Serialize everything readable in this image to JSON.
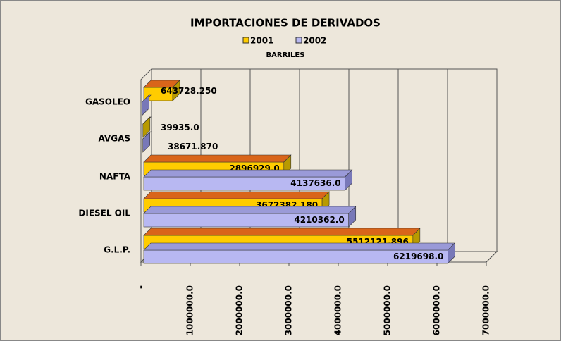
{
  "chart_data": {
    "type": "bar3d-horizontal",
    "title": "IMPORTACIONES DE DERIVADOS",
    "subtitle": "BARRILES",
    "categories": [
      "GASOLEO",
      "AVGAS",
      "NAFTA",
      "DIESEL OIL",
      "G.L.P."
    ],
    "series": [
      {
        "name": "2001",
        "color": "#ffcc00",
        "top_color": "#d9651a",
        "side_color": "#b89a00",
        "values": [
          643728.25,
          39935,
          2896929,
          3672382.18,
          5512121.896
        ],
        "value_labels": [
          "643728.250",
          "39935.0",
          "2896929.0",
          "3672382.180",
          "5512121.896"
        ]
      },
      {
        "name": "2002",
        "color": "#b8b8f2",
        "top_color": "#9a9ad8",
        "side_color": "#7878b8",
        "values": [
          20000,
          38671.87,
          4137636,
          4210362,
          6219698
        ],
        "value_labels": [
          null,
          "38671.870",
          "4137636.0",
          "4210362.0",
          "6219698.0"
        ]
      }
    ],
    "xlim": [
      0,
      7000000
    ],
    "xticks": [
      {
        "value": 0,
        "label": "-"
      },
      {
        "value": 1000000,
        "label": "1000000.0"
      },
      {
        "value": 2000000,
        "label": "2000000.0"
      },
      {
        "value": 3000000,
        "label": "3000000.0"
      },
      {
        "value": 4000000,
        "label": "4000000.0"
      },
      {
        "value": 5000000,
        "label": "5000000.0"
      },
      {
        "value": 6000000,
        "label": "6000000.0"
      },
      {
        "value": 7000000,
        "label": "7000000.0"
      }
    ],
    "grid": true
  }
}
